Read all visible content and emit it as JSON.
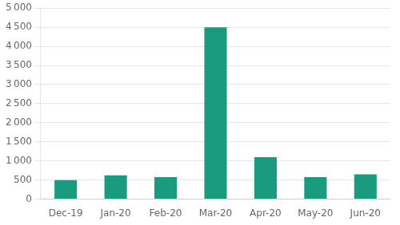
{
  "chart_data": {
    "type": "bar",
    "categories": [
      "Dec-19",
      "Jan-20",
      "Feb-20",
      "Mar-20",
      "Apr-20",
      "May-20",
      "Jun-20"
    ],
    "values": [
      500,
      625,
      575,
      4500,
      1100,
      575,
      650
    ],
    "color": "#1a9b80",
    "ylim": [
      0,
      5000
    ],
    "yticks": [
      0,
      500,
      {
        "value": 1000,
        "label": "1 000"
      },
      {
        "value": 1500,
        "label": "1 500"
      },
      {
        "value": 2000,
        "label": "2 000"
      },
      {
        "value": 2500,
        "label": "2 500"
      },
      {
        "value": 3000,
        "label": "3 000"
      },
      {
        "value": 3500,
        "label": "3 500"
      },
      {
        "value": 4000,
        "label": "4 000"
      },
      {
        "value": 4500,
        "label": "4 500"
      },
      {
        "value": 5000,
        "label": "5 000"
      }
    ],
    "grid": true
  }
}
